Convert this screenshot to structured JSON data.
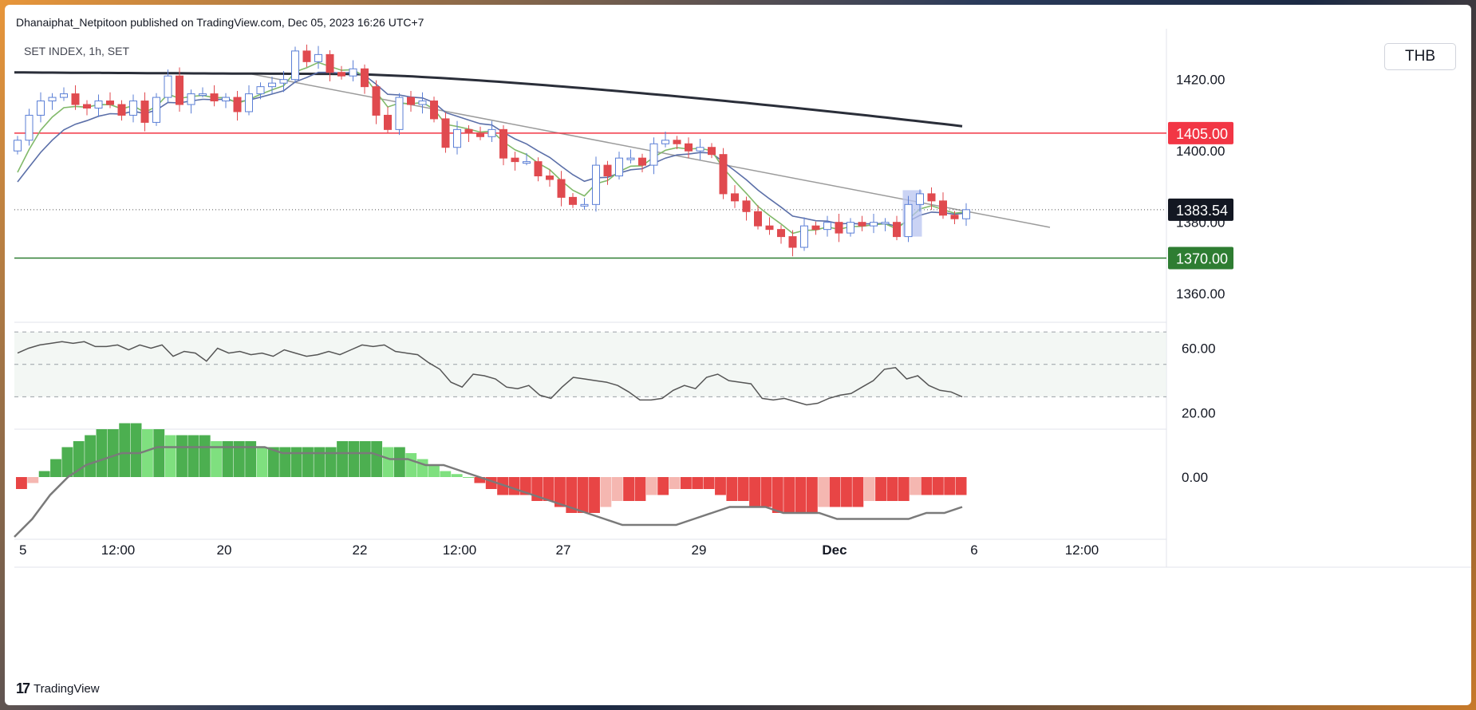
{
  "header": {
    "published_text": "Dhanaiphat_Netpitoon published on TradingView.com, Dec 05, 2023 16:26 UTC+7"
  },
  "chart": {
    "symbol": "SET INDEX, 1h, SET",
    "currency": "THB"
  },
  "footer": {
    "brand": "TradingView"
  },
  "colors": {
    "up": "#5b7fd6",
    "down": "#e04a4f",
    "resistance": "#f23645",
    "support": "#2e7d32",
    "ma_long": "#2a2e39",
    "ma_mid": "#5b6fa8",
    "ma_short": "#81b96a",
    "trendline": "#9b9b9b",
    "hist_green_dark": "#4caf50",
    "hist_green_light": "#7fe07f",
    "hist_red_dark": "#e84545",
    "hist_red_light": "#f5b7b1",
    "highlight": "#b8c4f0"
  },
  "chart_data": [
    {
      "type": "candlestick",
      "title": "SET INDEX, 1h, SET",
      "ylim": [
        1352,
        1432
      ],
      "y_ticks": [
        "1420.00",
        "1400.00",
        "1380.00",
        "1360.00"
      ],
      "x_ticks": [
        "5",
        "12:00",
        "20",
        "22",
        "12:00",
        "27",
        "29",
        "Dec",
        "6",
        "12:00"
      ],
      "price_labels": [
        {
          "value": "1405.00",
          "kind": "resistance"
        },
        {
          "value": "1383.54",
          "kind": "last"
        },
        {
          "value": "1370.00",
          "kind": "support"
        }
      ],
      "levels": {
        "resistance": 1405,
        "support": 1370,
        "last": 1383.54
      },
      "closes": [
        1403,
        1410,
        1414,
        1415,
        1416,
        1413,
        1412,
        1414,
        1413,
        1410,
        1414,
        1408,
        1415,
        1421,
        1413,
        1416,
        1416,
        1414,
        1415,
        1411,
        1416,
        1418,
        1419,
        1420,
        1428,
        1425,
        1427,
        1422,
        1421,
        1423,
        1418,
        1410,
        1406,
        1415,
        1413,
        1414,
        1409,
        1401,
        1406,
        1405,
        1404,
        1406,
        1398,
        1397,
        1397,
        1393,
        1392,
        1387,
        1385,
        1385,
        1396,
        1393,
        1398,
        1398,
        1396,
        1402,
        1403,
        1402,
        1400,
        1401,
        1399,
        1388,
        1386,
        1383,
        1379,
        1378,
        1376,
        1373,
        1379,
        1378,
        1380,
        1377,
        1380,
        1379,
        1380,
        1380,
        1376,
        1385,
        1388,
        1386,
        1382,
        1381,
        1383.54
      ],
      "rsi": {
        "ylim": [
          10,
          75
        ],
        "y_ticks": [
          "60.00",
          "20.00"
        ],
        "values": [
          57,
          60,
          62,
          63,
          64,
          63,
          64,
          61,
          61,
          62,
          59,
          62,
          60,
          62,
          55,
          58,
          57,
          52,
          60,
          57,
          58,
          56,
          57,
          55,
          59,
          57,
          55,
          56,
          58,
          56,
          59,
          62,
          61,
          62,
          58,
          57,
          56,
          51,
          47,
          39,
          36,
          44,
          43,
          41,
          36,
          35,
          37,
          31,
          29,
          36,
          42,
          41,
          40,
          39,
          37,
          33,
          28,
          28,
          29,
          34,
          37,
          35,
          42,
          44,
          40,
          39,
          38,
          29,
          28,
          29,
          27,
          25,
          26,
          29,
          31,
          32,
          36,
          40,
          47,
          48,
          41,
          43,
          37,
          34,
          33,
          30
        ]
      },
      "macd": {
        "y_ticks": [
          "0.00"
        ],
        "histogram": [
          -2,
          -1,
          1,
          3,
          5,
          6,
          7,
          8,
          8,
          9,
          9,
          8,
          8,
          7,
          7,
          7,
          7,
          6,
          6,
          6,
          6,
          5,
          5,
          5,
          5,
          5,
          5,
          5,
          6,
          6,
          6,
          6,
          5,
          5,
          4,
          3,
          2,
          1,
          0.5,
          0,
          -1,
          -2,
          -3,
          -3,
          -3,
          -4,
          -4,
          -5,
          -6,
          -6,
          -6,
          -5,
          -4,
          -4,
          -4,
          -3,
          -3,
          -2,
          -2,
          -2,
          -2,
          -3,
          -4,
          -4,
          -5,
          -5,
          -6,
          -6,
          -6,
          -6,
          -5,
          -5,
          -5,
          -5,
          -4,
          -4,
          -4,
          -4,
          -3,
          -3,
          -3,
          -3,
          -3
        ],
        "signal": [
          -10,
          -7,
          -3,
          0,
          2,
          3,
          4,
          4,
          5,
          5,
          5,
          5,
          5,
          5,
          5,
          4,
          4,
          4,
          4,
          4,
          4,
          3,
          3,
          2,
          2,
          1,
          0,
          -1,
          -2,
          -3,
          -4,
          -5,
          -6,
          -7,
          -8,
          -8,
          -8,
          -8,
          -7,
          -6,
          -5,
          -5,
          -5,
          -6,
          -6,
          -6,
          -7,
          -7,
          -7,
          -7,
          -7,
          -6,
          -6,
          -5
        ]
      }
    }
  ]
}
